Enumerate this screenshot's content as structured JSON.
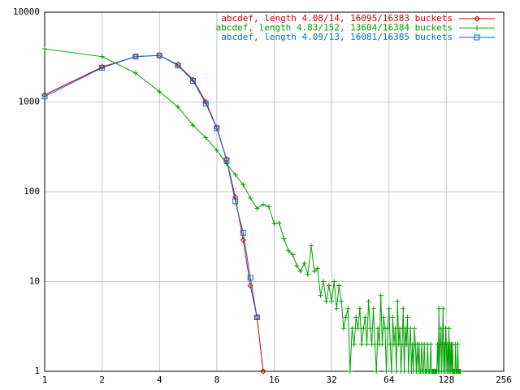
{
  "chart_data": {
    "type": "line",
    "xscale": "log",
    "yscale": "log",
    "grid": true,
    "legend": "top-right",
    "xlim": [
      1,
      256
    ],
    "ylim": [
      1,
      10000
    ],
    "xticks": [
      1,
      2,
      4,
      8,
      16,
      32,
      64,
      128,
      256
    ],
    "yticks": [
      1,
      10,
      100,
      1000,
      10000
    ],
    "series": [
      {
        "name": "abcdef, length 4.08/14, 16095/16383 buckets",
        "color": "#d00000",
        "marker": "diamond",
        "x": [
          1,
          2,
          3,
          4,
          5,
          6,
          7,
          8,
          9,
          10,
          11,
          12,
          13,
          14
        ],
        "values": [
          1200,
          2450,
          3200,
          3300,
          2600,
          1770,
          1000,
          520,
          230,
          87,
          29,
          9,
          4,
          1
        ]
      },
      {
        "name": "abcdef, length 4.83/152, 13604/16384 buckets",
        "color": "#00a000",
        "marker": "plus",
        "x": [
          1,
          2,
          3,
          4,
          5,
          6,
          7,
          8,
          9,
          10,
          11,
          12,
          13,
          14,
          15,
          16,
          17,
          18,
          19,
          20,
          21,
          22,
          23,
          24,
          25,
          26,
          27,
          28,
          29,
          30,
          31,
          32,
          33,
          34,
          35,
          36,
          37,
          38,
          39,
          40,
          41,
          42,
          43,
          44,
          45,
          46,
          47,
          48,
          49,
          50,
          51,
          52,
          53,
          54,
          55,
          56,
          57,
          58,
          59,
          60,
          61,
          62,
          63,
          64,
          65,
          66,
          67,
          68,
          69,
          70,
          71,
          72,
          73,
          74,
          75,
          76,
          77,
          78,
          79,
          80,
          81,
          82,
          83,
          84,
          85,
          86,
          87,
          88,
          89,
          90,
          91,
          92,
          93,
          94,
          95,
          96,
          97,
          98,
          99,
          100,
          101,
          102,
          103,
          104,
          105,
          106,
          107,
          108,
          109,
          110,
          111,
          112,
          113,
          114,
          115,
          116,
          117,
          118,
          119,
          120,
          121,
          122,
          123,
          124,
          125,
          126,
          127,
          128,
          129,
          130,
          131,
          132,
          133,
          134,
          135,
          136,
          137,
          138,
          139,
          140,
          141,
          142,
          143,
          144,
          145,
          146,
          147,
          148,
          149,
          150,
          151,
          152
        ],
        "values": [
          3900,
          3200,
          2100,
          1300,
          880,
          550,
          400,
          290,
          205,
          155,
          120,
          85,
          65,
          72,
          68,
          44,
          45,
          30,
          22,
          20,
          15,
          13,
          16,
          12,
          25,
          13,
          14,
          7,
          10,
          6,
          9,
          6,
          10,
          5,
          9,
          6,
          3,
          4,
          5,
          1,
          3,
          2,
          4,
          3,
          5,
          2,
          3,
          4,
          2,
          6,
          3,
          2,
          5,
          2,
          1,
          3,
          2,
          7,
          2,
          4,
          3,
          1,
          3,
          5,
          2,
          1,
          4,
          2,
          3,
          1,
          6,
          2,
          3,
          1,
          2,
          5,
          1,
          3,
          2,
          4,
          1,
          2,
          3,
          1,
          2,
          1,
          3,
          2,
          1,
          2,
          1,
          2,
          1,
          1,
          2,
          1,
          1,
          2,
          1,
          1,
          1,
          2,
          1,
          1,
          1,
          2,
          1,
          1,
          1,
          1,
          1,
          1,
          1,
          1,
          2,
          1,
          5,
          1,
          2,
          3,
          1,
          2,
          5,
          1,
          2,
          1,
          3,
          2,
          1,
          2,
          1,
          3,
          1,
          2,
          1,
          2,
          1,
          2,
          1,
          1,
          1,
          1,
          2,
          1,
          1,
          1,
          2,
          1,
          1,
          1,
          1,
          1
        ]
      },
      {
        "name": "abcdef, length 4.09/13, 16081/16385 buckets",
        "color": "#0070c0",
        "marker": "square",
        "x": [
          1,
          2,
          3,
          4,
          5,
          6,
          7,
          8,
          9,
          10,
          11,
          12,
          13
        ],
        "values": [
          1150,
          2400,
          3200,
          3300,
          2550,
          1720,
          960,
          510,
          225,
          78,
          35,
          11,
          4
        ]
      }
    ]
  }
}
